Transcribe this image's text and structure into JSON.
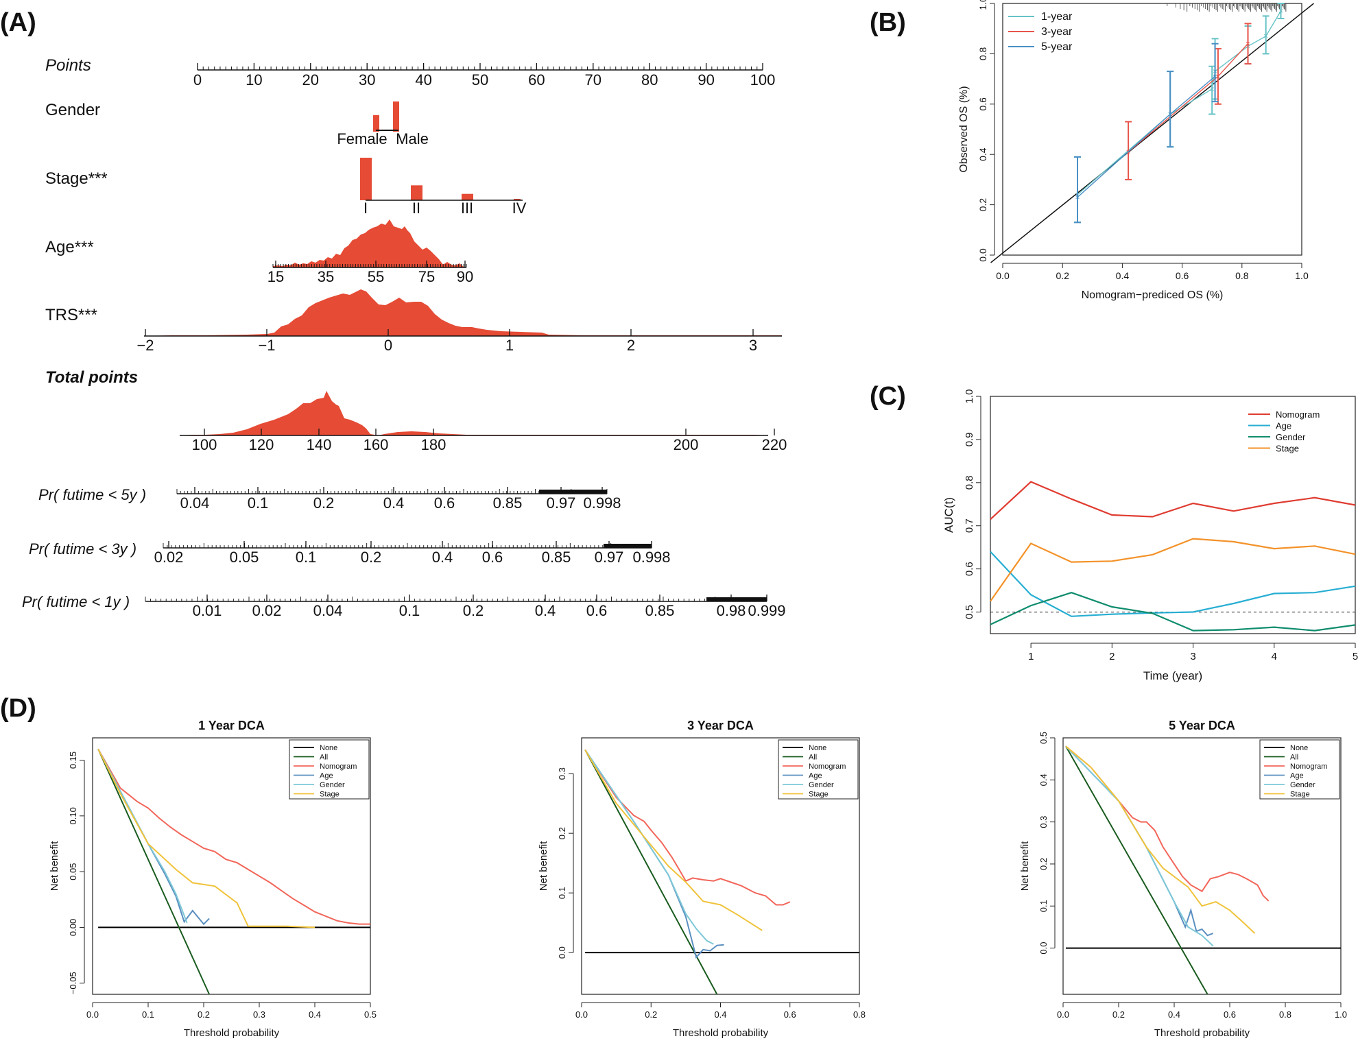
{
  "panels": {
    "a": "(A)",
    "b": "(B)",
    "c": "(C)",
    "d": "(D)"
  },
  "nomogram": {
    "points": {
      "label": "Points",
      "ticks": [
        "0",
        "10",
        "20",
        "30",
        "40",
        "50",
        "60",
        "70",
        "80",
        "90",
        "100"
      ]
    },
    "gender": {
      "label": "Gender",
      "levels": [
        "Female",
        "Male"
      ],
      "bar_values": [
        0.55,
        1.0
      ]
    },
    "stage": {
      "label": "Stage***",
      "levels": [
        "I",
        "II",
        "III",
        "IV"
      ],
      "bar_values": [
        1.0,
        0.35,
        0.15,
        0.02
      ]
    },
    "age": {
      "label": "Age***",
      "ticks": [
        "15",
        "35",
        "55",
        "75",
        "90"
      ]
    },
    "trs": {
      "label": "TRS***",
      "ticks": [
        "−2",
        "−1",
        "0",
        "1",
        "2",
        "3"
      ]
    },
    "total_points": {
      "label": "Total points",
      "ticks": [
        "100",
        "120",
        "140",
        "160",
        "180",
        "200",
        "220"
      ]
    },
    "pr5": {
      "label": "Pr( futime < 5y )",
      "ticks": [
        "0.04",
        "0.1",
        "0.2",
        "0.4",
        "0.6",
        "0.85",
        "0.97",
        "0.998"
      ]
    },
    "pr3": {
      "label": "Pr( futime < 3y )",
      "ticks": [
        "0.02",
        "0.05",
        "0.1",
        "0.2",
        "0.4",
        "0.6",
        "0.85",
        "0.97",
        "0.998"
      ]
    },
    "pr1": {
      "label": "Pr( futime < 1y )",
      "ticks": [
        "0.01",
        "0.02",
        "0.04",
        "0.1",
        "0.2",
        "0.4",
        "0.6",
        "0.85",
        "0.98",
        "0.999"
      ]
    }
  },
  "chart_data": [
    {
      "type": "line",
      "panel": "B",
      "xlabel": "Nomogram−prediced OS (%)",
      "ylabel": "Observed OS (%)",
      "xlim": [
        0,
        1
      ],
      "ylim": [
        0,
        1
      ],
      "xticks": [
        "0.0",
        "0.2",
        "0.4",
        "0.6",
        "0.8",
        "1.0"
      ],
      "yticks": [
        "0.0",
        "0.2",
        "0.4",
        "0.6",
        "0.8",
        "1.0"
      ],
      "legend": "top-left",
      "series": [
        {
          "name": "1-year",
          "color": "#66c2c6",
          "x": [
            0.25,
            0.56,
            0.7,
            0.71,
            0.82,
            0.88,
            0.93
          ],
          "y": [
            0.24,
            0.56,
            0.66,
            0.73,
            0.83,
            0.87,
            0.97
          ],
          "lower": [
            0.13,
            0.43,
            0.56,
            0.62,
            0.76,
            0.8,
            0.94
          ],
          "upper": [
            0.39,
            0.73,
            0.75,
            0.86,
            0.91,
            0.95,
            1.0
          ]
        },
        {
          "name": "3-year",
          "color": "#e8534a",
          "x": [
            0.42,
            0.72,
            0.82
          ],
          "y": [
            0.41,
            0.71,
            0.84
          ],
          "lower": [
            0.3,
            0.6,
            0.76
          ],
          "upper": [
            0.53,
            0.82,
            0.92
          ]
        },
        {
          "name": "5-year",
          "color": "#4a8fc4",
          "x": [
            0.25,
            0.56,
            0.71
          ],
          "y": [
            0.23,
            0.56,
            0.71
          ],
          "lower": [
            0.13,
            0.43,
            0.61
          ],
          "upper": [
            0.39,
            0.73,
            0.84
          ]
        }
      ]
    },
    {
      "type": "line",
      "panel": "C",
      "xlabel": "Time (year)",
      "ylabel": "AUC(t)",
      "xlim": [
        0.5,
        5
      ],
      "ylim": [
        0.45,
        1.0
      ],
      "xticks": [
        "1",
        "2",
        "3",
        "4",
        "5"
      ],
      "yticks": [
        "0.5",
        "0.6",
        "0.7",
        "0.8",
        "0.9",
        "1.0"
      ],
      "reference_line": 0.5,
      "legend": "top-right",
      "x": [
        0.5,
        1,
        1.5,
        2,
        2.5,
        3,
        3.5,
        4,
        4.5,
        5
      ],
      "series": [
        {
          "name": "Nomogram",
          "color": "#e03c31",
          "values": [
            0.715,
            0.802,
            0.762,
            0.725,
            0.721,
            0.752,
            0.734,
            0.752,
            0.765,
            0.748
          ]
        },
        {
          "name": "Age",
          "color": "#27aed3",
          "values": [
            0.64,
            0.54,
            0.49,
            0.495,
            0.498,
            0.5,
            0.52,
            0.543,
            0.545,
            0.56
          ]
        },
        {
          "name": "Gender",
          "color": "#0e8c6e",
          "values": [
            0.471,
            0.515,
            0.545,
            0.512,
            0.497,
            0.457,
            0.459,
            0.465,
            0.457,
            0.47
          ]
        },
        {
          "name": "Stage",
          "color": "#f39229",
          "values": [
            0.525,
            0.659,
            0.616,
            0.618,
            0.633,
            0.67,
            0.663,
            0.647,
            0.653,
            0.634
          ]
        }
      ]
    },
    {
      "type": "line",
      "panel": "D",
      "title": "1 Year DCA",
      "xlabel": "Threshold probability",
      "ylabel": "Net benefit",
      "xlim": [
        0,
        0.5
      ],
      "ylim": [
        -0.06,
        0.17
      ],
      "xticks": [
        "0.0",
        "0.1",
        "0.2",
        "0.3",
        "0.4",
        "0.5"
      ],
      "yticks": [
        "−0.05",
        "0.00",
        "0.05",
        "0.10",
        "0.15"
      ],
      "legend": "top-right",
      "series": [
        {
          "name": "None",
          "color": "#000000",
          "x": [
            0.01,
            0.5
          ],
          "y": [
            0,
            0
          ]
        },
        {
          "name": "All",
          "color": "#1a5c20",
          "x": [
            0.01,
            0.21
          ],
          "y": [
            0.16,
            -0.06
          ]
        },
        {
          "name": "Nomogram",
          "color": "#f2665a",
          "x": [
            0.01,
            0.05,
            0.08,
            0.1,
            0.12,
            0.14,
            0.16,
            0.18,
            0.2,
            0.22,
            0.24,
            0.26,
            0.28,
            0.3,
            0.32,
            0.34,
            0.36,
            0.38,
            0.4,
            0.42,
            0.44,
            0.46,
            0.48,
            0.5
          ],
          "y": [
            0.16,
            0.125,
            0.113,
            0.107,
            0.098,
            0.09,
            0.083,
            0.077,
            0.071,
            0.068,
            0.061,
            0.058,
            0.052,
            0.046,
            0.04,
            0.033,
            0.026,
            0.02,
            0.014,
            0.01,
            0.006,
            0.004,
            0.003,
            0.003
          ]
        },
        {
          "name": "Age",
          "color": "#5b8fc0",
          "x": [
            0.01,
            0.1,
            0.13,
            0.15,
            0.165,
            0.18,
            0.2,
            0.21
          ],
          "y": [
            0.16,
            0.075,
            0.048,
            0.028,
            0.005,
            0.015,
            0.003,
            0.008
          ]
        },
        {
          "name": "Gender",
          "color": "#7ec8d8",
          "x": [
            0.01,
            0.1,
            0.13,
            0.15,
            0.17
          ],
          "y": [
            0.16,
            0.075,
            0.05,
            0.03,
            0.004
          ]
        },
        {
          "name": "Stage",
          "color": "#f0c33c",
          "x": [
            0.01,
            0.05,
            0.1,
            0.15,
            0.18,
            0.22,
            0.26,
            0.28,
            0.3,
            0.35,
            0.4
          ],
          "y": [
            0.16,
            0.12,
            0.075,
            0.052,
            0.04,
            0.037,
            0.022,
            0.001,
            0.001,
            0.001,
            0.0
          ]
        }
      ]
    },
    {
      "type": "line",
      "panel": "D",
      "title": "3 Year DCA",
      "xlabel": "Threshold probability",
      "ylabel": "Net benefit",
      "xlim": [
        0,
        0.8
      ],
      "ylim": [
        -0.07,
        0.36
      ],
      "xticks": [
        "0.0",
        "0.2",
        "0.4",
        "0.6",
        "0.8"
      ],
      "yticks": [
        "0.0",
        "0.1",
        "0.2",
        "0.3"
      ],
      "legend": "top-right",
      "series": [
        {
          "name": "None",
          "color": "#000000",
          "x": [
            0.01,
            0.8
          ],
          "y": [
            0,
            0
          ]
        },
        {
          "name": "All",
          "color": "#1a5c20",
          "x": [
            0.01,
            0.39
          ],
          "y": [
            0.34,
            -0.07
          ]
        },
        {
          "name": "Nomogram",
          "color": "#f2665a",
          "x": [
            0.01,
            0.1,
            0.15,
            0.18,
            0.2,
            0.23,
            0.26,
            0.28,
            0.3,
            0.32,
            0.35,
            0.38,
            0.4,
            0.43,
            0.46,
            0.5,
            0.53,
            0.56,
            0.58,
            0.6
          ],
          "y": [
            0.34,
            0.26,
            0.23,
            0.22,
            0.205,
            0.185,
            0.16,
            0.14,
            0.12,
            0.125,
            0.122,
            0.12,
            0.124,
            0.118,
            0.112,
            0.1,
            0.095,
            0.08,
            0.08,
            0.085
          ]
        },
        {
          "name": "Age",
          "color": "#5b8fc0",
          "x": [
            0.01,
            0.15,
            0.25,
            0.3,
            0.33,
            0.35,
            0.37,
            0.39,
            0.41
          ],
          "y": [
            0.34,
            0.22,
            0.13,
            0.06,
            -0.008,
            0.005,
            0.003,
            0.012,
            0.013
          ]
        },
        {
          "name": "Gender",
          "color": "#7ec8d8",
          "x": [
            0.01,
            0.15,
            0.25,
            0.3,
            0.33,
            0.36,
            0.38
          ],
          "y": [
            0.34,
            0.22,
            0.13,
            0.065,
            0.04,
            0.02,
            0.014
          ]
        },
        {
          "name": "Stage",
          "color": "#f0c33c",
          "x": [
            0.01,
            0.1,
            0.2,
            0.25,
            0.3,
            0.35,
            0.4,
            0.45,
            0.52
          ],
          "y": [
            0.34,
            0.25,
            0.18,
            0.145,
            0.118,
            0.086,
            0.08,
            0.063,
            0.037
          ]
        }
      ]
    },
    {
      "type": "line",
      "panel": "D",
      "title": "5 Year DCA",
      "xlabel": "Threshold probability",
      "ylabel": "Net benefit",
      "xlim": [
        0,
        1.0
      ],
      "ylim": [
        -0.11,
        0.5
      ],
      "xticks": [
        "0.0",
        "0.2",
        "0.4",
        "0.6",
        "0.8",
        "1.0"
      ],
      "yticks": [
        "0.0",
        "0.1",
        "0.2",
        "0.3",
        "0.4",
        "0.5"
      ],
      "legend": "top-right",
      "series": [
        {
          "name": "None",
          "color": "#000000",
          "x": [
            0.01,
            1.0
          ],
          "y": [
            0,
            0
          ]
        },
        {
          "name": "All",
          "color": "#1a5c20",
          "x": [
            0.01,
            0.52
          ],
          "y": [
            0.48,
            -0.11
          ]
        },
        {
          "name": "Nomogram",
          "color": "#f2665a",
          "x": [
            0.01,
            0.1,
            0.2,
            0.25,
            0.28,
            0.3,
            0.33,
            0.36,
            0.4,
            0.43,
            0.46,
            0.5,
            0.53,
            0.56,
            0.6,
            0.63,
            0.66,
            0.7,
            0.72,
            0.74
          ],
          "y": [
            0.48,
            0.43,
            0.35,
            0.31,
            0.3,
            0.3,
            0.28,
            0.24,
            0.2,
            0.17,
            0.15,
            0.135,
            0.165,
            0.17,
            0.18,
            0.175,
            0.165,
            0.15,
            0.125,
            0.112
          ]
        },
        {
          "name": "Age",
          "color": "#5b8fc0",
          "x": [
            0.01,
            0.2,
            0.3,
            0.4,
            0.44,
            0.46,
            0.48,
            0.5,
            0.52,
            0.54
          ],
          "y": [
            0.48,
            0.35,
            0.24,
            0.11,
            0.05,
            0.09,
            0.04,
            0.045,
            0.03,
            0.035
          ]
        },
        {
          "name": "Gender",
          "color": "#7ec8d8",
          "x": [
            0.01,
            0.2,
            0.3,
            0.4,
            0.45,
            0.5,
            0.54
          ],
          "y": [
            0.48,
            0.35,
            0.24,
            0.11,
            0.05,
            0.03,
            0.005
          ]
        },
        {
          "name": "Stage",
          "color": "#f0c33c",
          "x": [
            0.01,
            0.1,
            0.2,
            0.3,
            0.36,
            0.4,
            0.45,
            0.5,
            0.55,
            0.6,
            0.65,
            0.69
          ],
          "y": [
            0.48,
            0.43,
            0.35,
            0.24,
            0.19,
            0.17,
            0.145,
            0.1,
            0.11,
            0.09,
            0.06,
            0.035
          ]
        }
      ]
    }
  ]
}
